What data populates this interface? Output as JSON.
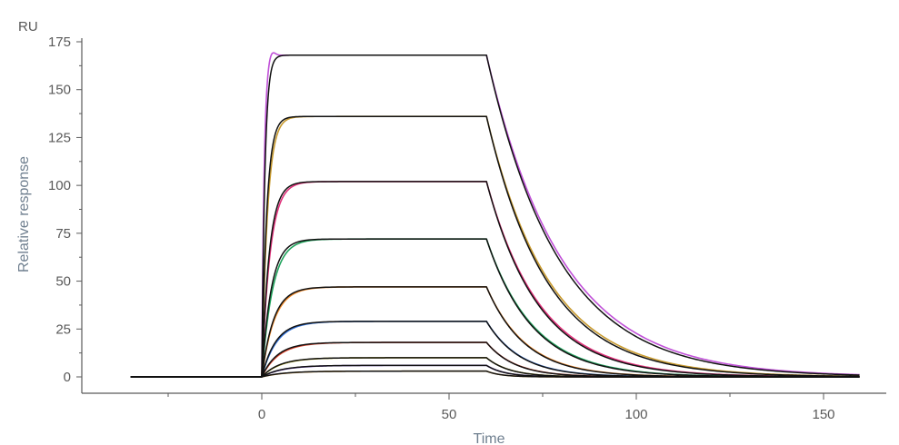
{
  "chart_data": {
    "type": "line",
    "ylabel": "Relative response",
    "yunit": "RU",
    "xlabel": "Time",
    "xlim": [
      -38,
      162
    ],
    "ylim": [
      -4,
      178
    ],
    "xticks": [
      0,
      50,
      100,
      150
    ],
    "yticks": [
      0,
      25,
      50,
      75,
      100,
      125,
      150,
      175
    ],
    "grid": false,
    "legend": "none",
    "injection_start": 0,
    "injection_end": 60,
    "series": [
      {
        "kind": "measured",
        "color": "#c050d8",
        "plateau": 168,
        "ka": 1.6,
        "overshoot": 3,
        "kd": 0.05
      },
      {
        "kind": "measured",
        "color": "#c89a2e",
        "plateau": 136,
        "ka": 0.65,
        "overshoot": 0,
        "kd": 0.06
      },
      {
        "kind": "measured",
        "color": "#e0307a",
        "plateau": 102,
        "ka": 0.45,
        "overshoot": 0,
        "kd": 0.07
      },
      {
        "kind": "measured",
        "color": "#1fa35c",
        "plateau": 72,
        "ka": 0.35,
        "overshoot": 0,
        "kd": 0.08
      },
      {
        "kind": "measured",
        "color": "#f08a2a",
        "plateau": 47,
        "ka": 0.3,
        "overshoot": 0,
        "kd": 0.095
      },
      {
        "kind": "measured",
        "color": "#2f6fd6",
        "plateau": 29,
        "ka": 0.25,
        "overshoot": 0,
        "kd": 0.11
      },
      {
        "kind": "measured",
        "color": "#e0442a",
        "plateau": 18,
        "ka": 0.22,
        "overshoot": 0,
        "kd": 0.13
      },
      {
        "kind": "measured",
        "color": "#b8b020",
        "plateau": 10,
        "ka": 0.2,
        "overshoot": 0,
        "kd": 0.16
      },
      {
        "kind": "measured",
        "color": "#7a4fd0",
        "plateau": 6,
        "ka": 0.18,
        "overshoot": 0,
        "kd": 0.2
      },
      {
        "kind": "measured",
        "color": "#d8a040",
        "plateau": 3,
        "ka": 0.16,
        "overshoot": 0,
        "kd": 0.25
      },
      {
        "kind": "fit",
        "color": "#111111",
        "plateau": 168,
        "ka": 1.2,
        "overshoot": 0,
        "kd": 0.052
      },
      {
        "kind": "fit",
        "color": "#111111",
        "plateau": 136,
        "ka": 0.75,
        "overshoot": 0,
        "kd": 0.062
      },
      {
        "kind": "fit",
        "color": "#111111",
        "plateau": 102,
        "ka": 0.5,
        "overshoot": 0,
        "kd": 0.072
      },
      {
        "kind": "fit",
        "color": "#111111",
        "plateau": 72,
        "ka": 0.4,
        "overshoot": 0,
        "kd": 0.082
      },
      {
        "kind": "fit",
        "color": "#111111",
        "plateau": 47,
        "ka": 0.32,
        "overshoot": 0,
        "kd": 0.097
      },
      {
        "kind": "fit",
        "color": "#111111",
        "plateau": 29,
        "ka": 0.27,
        "overshoot": 0,
        "kd": 0.112
      },
      {
        "kind": "fit",
        "color": "#111111",
        "plateau": 18,
        "ka": 0.24,
        "overshoot": 0,
        "kd": 0.132
      },
      {
        "kind": "fit",
        "color": "#111111",
        "plateau": 10,
        "ka": 0.21,
        "overshoot": 0,
        "kd": 0.162
      },
      {
        "kind": "fit",
        "color": "#111111",
        "plateau": 6,
        "ka": 0.19,
        "overshoot": 0,
        "kd": 0.202
      },
      {
        "kind": "fit",
        "color": "#111111",
        "plateau": 3,
        "ka": 0.17,
        "overshoot": 0,
        "kd": 0.252
      }
    ]
  }
}
